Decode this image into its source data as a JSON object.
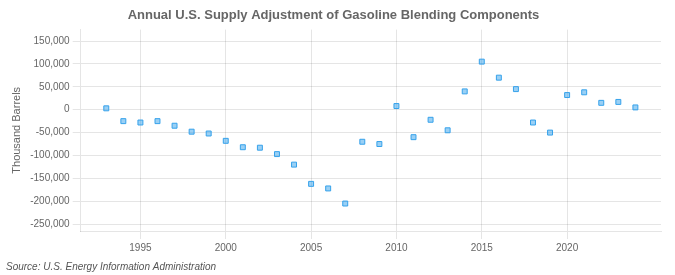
{
  "chart_data": {
    "type": "scatter",
    "title": "Annual U.S. Supply Adjustment of Gasoline Blending Components",
    "ylabel": "Thousand Barrels",
    "annotations": [
      "Source: U.S. Energy Information Administration"
    ],
    "marker": "square",
    "grid": true,
    "x": [
      1993,
      1994,
      1995,
      1996,
      1997,
      1998,
      1999,
      2000,
      2001,
      2002,
      2003,
      2004,
      2005,
      2006,
      2007,
      2008,
      2009,
      2010,
      2011,
      2012,
      2013,
      2014,
      2015,
      2016,
      2017,
      2018,
      2019,
      2020,
      2021,
      2022,
      2023,
      2024
    ],
    "values": [
      3000,
      -25000,
      -28000,
      -25000,
      -35000,
      -48000,
      -52000,
      -68000,
      -82000,
      -83000,
      -97000,
      -120000,
      -162000,
      -172000,
      -205000,
      -70000,
      -75000,
      8000,
      -60000,
      -22000,
      -45000,
      40000,
      105000,
      70000,
      45000,
      -28000,
      -50000,
      32000,
      38000,
      15000,
      17000,
      5000
    ],
    "xlim": [
      1991.5,
      2025.5
    ],
    "xticks": [
      1995,
      2000,
      2005,
      2010,
      2015,
      2020
    ],
    "ylim": [
      -265000,
      175000
    ],
    "yticks": [
      {
        "value": -250000,
        "label": "-250,000"
      },
      {
        "value": -200000,
        "label": "-200,000"
      },
      {
        "value": -150000,
        "label": "-150,000"
      },
      {
        "value": -100000,
        "label": "-100,000"
      },
      {
        "value": -50000,
        "label": "-50,000"
      },
      0,
      {
        "value": 50000,
        "label": "50,000"
      },
      {
        "value": 100000,
        "label": "100,000"
      },
      {
        "value": 150000,
        "label": "150,000"
      }
    ]
  }
}
